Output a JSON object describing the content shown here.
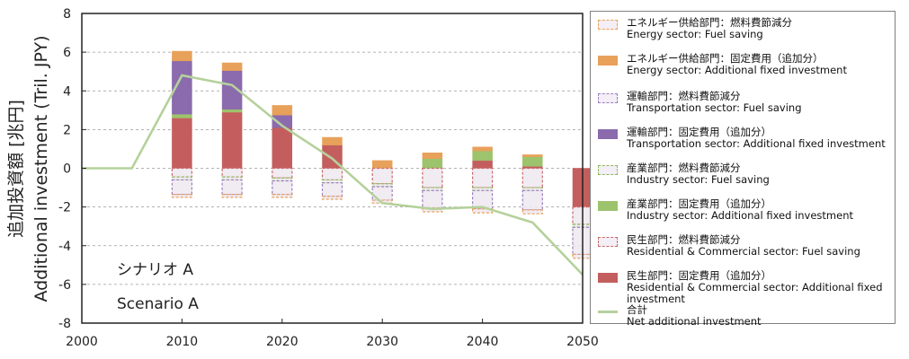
{
  "chart_data": {
    "type": "bar",
    "subtype": "stacked bar with line",
    "ylabel_ja": "追加投資額 [兆円]",
    "ylabel_en": "Additional investment (Tril. JPY)",
    "ylim": [
      -8,
      8
    ],
    "xlim": [
      2000,
      2050
    ],
    "yticks": [
      "8",
      "6",
      "4",
      "2",
      "0",
      "-2",
      "-4",
      "-6",
      "-8"
    ],
    "xticks": [
      "2000",
      "2010",
      "2020",
      "2030",
      "2040",
      "2050"
    ],
    "grid": "horizontal dashed",
    "legend_position": "right",
    "annotations": [
      "シナリオ A",
      "Scenario A"
    ],
    "x": [
      2010,
      2015,
      2020,
      2025,
      2030,
      2035,
      2040,
      2045,
      2050
    ],
    "series": [
      {
        "name_ja": "エネルギー供給部門：燃料費節減分",
        "name_en": "Energy sector: Fuel saving",
        "color": "#E8A15A",
        "style": "dashed",
        "values": [
          -0.15,
          -0.15,
          -0.15,
          -0.15,
          -0.15,
          -0.2,
          -0.2,
          -0.2,
          -0.2
        ]
      },
      {
        "name_ja": "エネルギー供給部門：固定費用（追加分）",
        "name_en": "Energy sector: Additional fixed investment",
        "color": "#E8A15A",
        "style": "solid",
        "values": [
          0.5,
          0.4,
          0.5,
          0.4,
          0.4,
          0.3,
          0.2,
          0.1,
          0.0
        ]
      },
      {
        "name_ja": "運輸部門：燃料費節減分",
        "name_en": "Transportation sector: Fuel saving",
        "color": "#9C80C0",
        "style": "dashed",
        "values": [
          -0.75,
          -0.75,
          -0.7,
          -0.7,
          -0.7,
          -0.9,
          -0.95,
          -1.0,
          -1.4
        ]
      },
      {
        "name_ja": "運輸部門：固定費用（追加分）",
        "name_en": "Transportation sector: Additional fixed investment",
        "color": "#8B6AAD",
        "style": "solid",
        "values": [
          2.75,
          2.0,
          0.65,
          0.0,
          0.0,
          0.0,
          0.0,
          0.0,
          0.0
        ]
      },
      {
        "name_ja": "産業部門：燃料費節減分",
        "name_en": "Industry sector: Fuel saving",
        "color": "#8DBB5A",
        "style": "dashed",
        "values": [
          -0.15,
          -0.15,
          -0.15,
          -0.15,
          -0.15,
          -0.15,
          -0.15,
          -0.15,
          -0.15
        ]
      },
      {
        "name_ja": "産業部門：固定費用（追加分）",
        "name_en": "Industry sector: Additional fixed investment",
        "color": "#9DC36C",
        "style": "solid",
        "values": [
          0.2,
          0.15,
          0.0,
          0.0,
          0.0,
          0.5,
          0.5,
          0.5,
          0.0
        ]
      },
      {
        "name_ja": "民生部門：燃料費節減分",
        "name_en": "Residential & Commercial sector: Fuel saving",
        "color": "#C96A6A",
        "style": "dashed",
        "values": [
          -0.45,
          -0.45,
          -0.5,
          -0.6,
          -0.8,
          -1.0,
          -1.0,
          -1.0,
          -0.9
        ]
      },
      {
        "name_ja": "民生部門：固定費用（追加分）",
        "name_en": "Residential & Commercial sector: Additional fixed investment",
        "color": "#C45E5E",
        "style": "solid",
        "values": [
          2.6,
          2.9,
          2.1,
          1.2,
          0.0,
          0.0,
          0.4,
          0.1,
          -2.0
        ]
      },
      {
        "name_ja": "合計",
        "name_en": "Net additional investment",
        "color": "#B5D19B",
        "style": "line",
        "x": [
          2000,
          2005,
          2010,
          2015,
          2020,
          2025,
          2030,
          2035,
          2040,
          2045,
          2050
        ],
        "values": [
          0,
          0,
          4.8,
          4.3,
          2.2,
          0.5,
          -1.8,
          -2.1,
          -2.0,
          -2.8,
          -5.5
        ]
      }
    ]
  }
}
